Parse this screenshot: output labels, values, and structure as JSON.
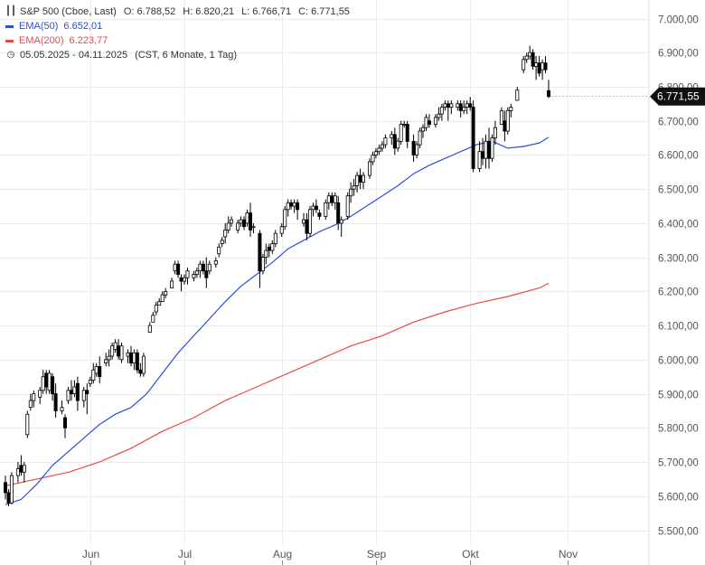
{
  "chart_data": {
    "type": "candlestick",
    "title": "S&P 500 (Cboe, Last)",
    "ohlc_label": {
      "o_key": "O:",
      "o": "6.788,52",
      "h_key": "H:",
      "h": "6.820,21",
      "l_key": "L:",
      "l": "6.766,71",
      "c_key": "C:",
      "c": "6.771,55"
    },
    "date_range": "05.05.2025 - 04.11.2025",
    "range_note": "(CST, 6 Monate, 1 Tag)",
    "last_price_label": "6.771,55",
    "ylim": [
      5450,
      7050
    ],
    "y_ticks": [
      5500,
      5600,
      5700,
      5800,
      5900,
      6000,
      6100,
      6200,
      6300,
      6400,
      6500,
      6600,
      6700,
      6800,
      6900,
      7000
    ],
    "y_tick_labels": [
      "5.500,00",
      "5.600,00",
      "5.700,00",
      "5.800,00",
      "5.900,00",
      "6.000,00",
      "6.100,00",
      "6.200,00",
      "6.300,00",
      "6.400,00",
      "6.500,00",
      "6.600,00",
      "6.700,00",
      "6.800,00",
      "6.900,00",
      "7.000,00"
    ],
    "x_tick_labels": [
      "Jun",
      "Jul",
      "Aug",
      "Sep",
      "Okt",
      "Nov"
    ],
    "x_tick_days": [
      27,
      57,
      88,
      118,
      148,
      179
    ],
    "grid": true,
    "colors": {
      "ema50": "#2b4fd8",
      "ema200": "#e84a4a",
      "candle": "#000000",
      "grid": "#ececec"
    },
    "candles": [
      [
        0,
        5640,
        5660,
        5590,
        5610
      ],
      [
        1,
        5610,
        5620,
        5570,
        5580
      ],
      [
        2,
        5580,
        5670,
        5575,
        5660
      ],
      [
        4,
        5660,
        5700,
        5640,
        5680
      ],
      [
        5,
        5690,
        5720,
        5660,
        5670
      ],
      [
        6,
        5670,
        5700,
        5640,
        5690
      ],
      [
        7,
        5780,
        5850,
        5770,
        5840
      ],
      [
        8,
        5860,
        5900,
        5850,
        5880
      ],
      [
        9,
        5880,
        5910,
        5860,
        5900
      ],
      [
        11,
        5890,
        5920,
        5870,
        5910
      ],
      [
        12,
        5910,
        5970,
        5900,
        5950
      ],
      [
        13,
        5960,
        5970,
        5900,
        5920
      ],
      [
        14,
        5910,
        5970,
        5900,
        5960
      ],
      [
        15,
        5950,
        5960,
        5880,
        5900
      ],
      [
        16,
        5900,
        5930,
        5830,
        5850
      ],
      [
        18,
        5850,
        5880,
        5840,
        5860
      ],
      [
        19,
        5830,
        5840,
        5770,
        5800
      ],
      [
        20,
        5880,
        5920,
        5870,
        5910
      ],
      [
        21,
        5910,
        5940,
        5880,
        5900
      ],
      [
        22,
        5900,
        5940,
        5890,
        5920
      ],
      [
        23,
        5930,
        5950,
        5850,
        5880
      ],
      [
        25,
        5880,
        5920,
        5860,
        5910
      ],
      [
        26,
        5910,
        5930,
        5840,
        5900
      ],
      [
        27,
        5930,
        5950,
        5920,
        5940
      ],
      [
        28,
        5940,
        5990,
        5930,
        5970
      ],
      [
        29,
        5960,
        5990,
        5950,
        5980
      ],
      [
        30,
        5980,
        6010,
        5930,
        5950
      ],
      [
        32,
        5990,
        6020,
        5980,
        6000
      ],
      [
        33,
        6000,
        6030,
        5980,
        6010
      ],
      [
        34,
        6010,
        6050,
        6000,
        6040
      ],
      [
        35,
        6030,
        6060,
        6020,
        6050
      ],
      [
        36,
        6040,
        6060,
        6000,
        6010
      ],
      [
        37,
        6000,
        6050,
        5990,
        6040
      ],
      [
        39,
        6010,
        6030,
        5990,
        6020
      ],
      [
        40,
        6020,
        6040,
        5980,
        5990
      ],
      [
        41,
        5990,
        6030,
        5970,
        6020
      ],
      [
        42,
        6020,
        6030,
        5960,
        5970
      ],
      [
        43,
        5970,
        5990,
        5950,
        5960
      ],
      [
        44,
        5960,
        6020,
        5950,
        6010
      ],
      [
        46,
        6080,
        6110,
        6080,
        6100
      ],
      [
        47,
        6110,
        6140,
        6110,
        6130
      ],
      [
        48,
        6140,
        6170,
        6130,
        6160
      ],
      [
        49,
        6160,
        6180,
        6160,
        6170
      ],
      [
        50,
        6170,
        6200,
        6170,
        6190
      ],
      [
        51,
        6190,
        6210,
        6180,
        6200
      ],
      [
        53,
        6210,
        6240,
        6210,
        6230
      ],
      [
        54,
        6260,
        6290,
        6250,
        6280
      ],
      [
        55,
        6280,
        6290,
        6240,
        6250
      ],
      [
        56,
        6240,
        6250,
        6200,
        6230
      ],
      [
        57,
        6230,
        6250,
        6220,
        6240
      ],
      [
        58,
        6240,
        6270,
        6220,
        6260
      ],
      [
        60,
        6240,
        6260,
        6230,
        6250
      ],
      [
        61,
        6250,
        6270,
        6240,
        6260
      ],
      [
        62,
        6260,
        6290,
        6240,
        6280
      ],
      [
        63,
        6280,
        6290,
        6250,
        6260
      ],
      [
        64,
        6260,
        6300,
        6210,
        6240
      ],
      [
        65,
        6260,
        6290,
        6250,
        6280
      ],
      [
        67,
        6280,
        6300,
        6270,
        6290
      ],
      [
        68,
        6310,
        6340,
        6300,
        6330
      ],
      [
        69,
        6340,
        6360,
        6330,
        6350
      ],
      [
        70,
        6360,
        6400,
        6340,
        6380
      ],
      [
        71,
        6380,
        6420,
        6370,
        6400
      ],
      [
        72,
        6400,
        6420,
        6390,
        6410
      ],
      [
        74,
        6380,
        6410,
        6370,
        6400
      ],
      [
        75,
        6400,
        6420,
        6390,
        6410
      ],
      [
        76,
        6410,
        6420,
        6380,
        6390
      ],
      [
        77,
        6400,
        6440,
        6390,
        6430
      ],
      [
        78,
        6430,
        6460,
        6360,
        6380
      ],
      [
        79,
        6390,
        6400,
        6370,
        6390
      ],
      [
        81,
        6370,
        6380,
        6210,
        6260
      ],
      [
        82,
        6260,
        6310,
        6250,
        6300
      ],
      [
        83,
        6300,
        6340,
        6280,
        6320
      ],
      [
        84,
        6330,
        6340,
        6300,
        6320
      ],
      [
        85,
        6320,
        6350,
        6310,
        6340
      ],
      [
        86,
        6340,
        6380,
        6330,
        6370
      ],
      [
        88,
        6370,
        6400,
        6360,
        6390
      ],
      [
        89,
        6390,
        6450,
        6380,
        6440
      ],
      [
        90,
        6440,
        6470,
        6420,
        6460
      ],
      [
        91,
        6460,
        6470,
        6440,
        6450
      ],
      [
        92,
        6450,
        6470,
        6430,
        6460
      ],
      [
        93,
        6460,
        6470,
        6410,
        6440
      ],
      [
        95,
        6400,
        6430,
        6390,
        6410
      ],
      [
        96,
        6410,
        6430,
        6350,
        6370
      ],
      [
        97,
        6370,
        6450,
        6360,
        6440
      ],
      [
        98,
        6440,
        6460,
        6420,
        6450
      ],
      [
        99,
        6450,
        6470,
        6430,
        6440
      ],
      [
        100,
        6430,
        6440,
        6410,
        6420
      ],
      [
        102,
        6420,
        6470,
        6410,
        6460
      ],
      [
        103,
        6460,
        6490,
        6440,
        6480
      ],
      [
        104,
        6480,
        6490,
        6450,
        6460
      ],
      [
        105,
        6460,
        6490,
        6440,
        6480
      ],
      [
        106,
        6460,
        6480,
        6380,
        6400
      ],
      [
        107,
        6400,
        6420,
        6360,
        6410
      ],
      [
        109,
        6420,
        6490,
        6410,
        6480
      ],
      [
        110,
        6480,
        6520,
        6460,
        6500
      ],
      [
        111,
        6500,
        6530,
        6480,
        6510
      ],
      [
        112,
        6510,
        6550,
        6490,
        6540
      ],
      [
        113,
        6540,
        6560,
        6500,
        6520
      ],
      [
        114,
        6520,
        6550,
        6500,
        6540
      ],
      [
        116,
        6540,
        6590,
        6530,
        6580
      ],
      [
        117,
        6580,
        6610,
        6570,
        6600
      ],
      [
        118,
        6600,
        6620,
        6590,
        6610
      ],
      [
        119,
        6610,
        6630,
        6600,
        6620
      ],
      [
        120,
        6620,
        6640,
        6610,
        6630
      ],
      [
        121,
        6630,
        6660,
        6620,
        6650
      ],
      [
        123,
        6650,
        6670,
        6630,
        6660
      ],
      [
        124,
        6660,
        6680,
        6600,
        6620
      ],
      [
        125,
        6620,
        6650,
        6610,
        6640
      ],
      [
        126,
        6640,
        6700,
        6630,
        6690
      ],
      [
        127,
        6690,
        6700,
        6680,
        6690
      ],
      [
        128,
        6690,
        6700,
        6620,
        6640
      ],
      [
        130,
        6640,
        6660,
        6580,
        6600
      ],
      [
        131,
        6600,
        6640,
        6590,
        6630
      ],
      [
        132,
        6630,
        6680,
        6620,
        6670
      ],
      [
        133,
        6670,
        6690,
        6650,
        6680
      ],
      [
        134,
        6680,
        6720,
        6670,
        6710
      ],
      [
        135,
        6700,
        6720,
        6680,
        6690
      ],
      [
        137,
        6690,
        6720,
        6680,
        6710
      ],
      [
        138,
        6710,
        6740,
        6700,
        6720
      ],
      [
        139,
        6720,
        6750,
        6700,
        6740
      ],
      [
        140,
        6740,
        6760,
        6730,
        6750
      ],
      [
        141,
        6750,
        6760,
        6700,
        6740
      ],
      [
        142,
        6740,
        6760,
        6720,
        6750
      ],
      [
        144,
        6740,
        6760,
        6730,
        6750
      ],
      [
        145,
        6750,
        6760,
        6710,
        6730
      ],
      [
        146,
        6730,
        6760,
        6720,
        6740
      ],
      [
        147,
        6740,
        6760,
        6720,
        6750
      ],
      [
        148,
        6750,
        6770,
        6730,
        6740
      ],
      [
        149,
        6740,
        6760,
        6550,
        6560
      ],
      [
        151,
        6560,
        6640,
        6550,
        6610
      ],
      [
        152,
        6610,
        6650,
        6570,
        6590
      ],
      [
        153,
        6590,
        6660,
        6560,
        6640
      ],
      [
        154,
        6640,
        6680,
        6560,
        6590
      ],
      [
        155,
        6590,
        6660,
        6580,
        6650
      ],
      [
        156,
        6650,
        6700,
        6630,
        6680
      ],
      [
        158,
        6690,
        6740,
        6690,
        6730
      ],
      [
        159,
        6700,
        6730,
        6640,
        6670
      ],
      [
        160,
        6670,
        6740,
        6660,
        6730
      ],
      [
        161,
        6730,
        6750,
        6710,
        6740
      ],
      [
        163,
        6760,
        6800,
        6760,
        6790
      ],
      [
        165,
        6850,
        6890,
        6840,
        6880
      ],
      [
        166,
        6880,
        6900,
        6870,
        6890
      ],
      [
        167,
        6890,
        6920,
        6880,
        6900
      ],
      [
        168,
        6900,
        6910,
        6850,
        6860
      ],
      [
        169,
        6860,
        6890,
        6820,
        6870
      ],
      [
        170,
        6870,
        6890,
        6830,
        6840
      ],
      [
        171,
        6850,
        6880,
        6820,
        6870
      ],
      [
        172,
        6870,
        6890,
        6840,
        6850
      ],
      [
        173,
        6788.52,
        6820.21,
        6766.71,
        6771.55
      ]
    ],
    "series": [
      {
        "name": "EMA(50)",
        "value_label": "6.652,01",
        "color": "#2b4fd8",
        "points": [
          [
            0,
            5575
          ],
          [
            5,
            5590
          ],
          [
            10,
            5635
          ],
          [
            15,
            5690
          ],
          [
            20,
            5730
          ],
          [
            25,
            5770
          ],
          [
            30,
            5810
          ],
          [
            35,
            5840
          ],
          [
            40,
            5860
          ],
          [
            45,
            5900
          ],
          [
            50,
            5960
          ],
          [
            55,
            6020
          ],
          [
            60,
            6070
          ],
          [
            65,
            6120
          ],
          [
            70,
            6170
          ],
          [
            75,
            6215
          ],
          [
            80,
            6250
          ],
          [
            85,
            6285
          ],
          [
            90,
            6325
          ],
          [
            95,
            6350
          ],
          [
            100,
            6375
          ],
          [
            105,
            6395
          ],
          [
            110,
            6420
          ],
          [
            115,
            6450
          ],
          [
            120,
            6480
          ],
          [
            125,
            6510
          ],
          [
            130,
            6545
          ],
          [
            135,
            6570
          ],
          [
            140,
            6590
          ],
          [
            145,
            6610
          ],
          [
            150,
            6630
          ],
          [
            155,
            6640
          ],
          [
            160,
            6620
          ],
          [
            165,
            6625
          ],
          [
            170,
            6635
          ],
          [
            173,
            6652
          ]
        ]
      },
      {
        "name": "EMA(200)",
        "value_label": "6.223,77",
        "color": "#e84a4a",
        "points": [
          [
            0,
            5630
          ],
          [
            10,
            5650
          ],
          [
            20,
            5670
          ],
          [
            30,
            5700
          ],
          [
            40,
            5740
          ],
          [
            50,
            5790
          ],
          [
            60,
            5830
          ],
          [
            70,
            5880
          ],
          [
            80,
            5920
          ],
          [
            90,
            5960
          ],
          [
            100,
            6000
          ],
          [
            110,
            6040
          ],
          [
            120,
            6070
          ],
          [
            130,
            6110
          ],
          [
            140,
            6140
          ],
          [
            150,
            6165
          ],
          [
            160,
            6185
          ],
          [
            170,
            6210
          ],
          [
            173,
            6223.77
          ]
        ]
      }
    ]
  }
}
